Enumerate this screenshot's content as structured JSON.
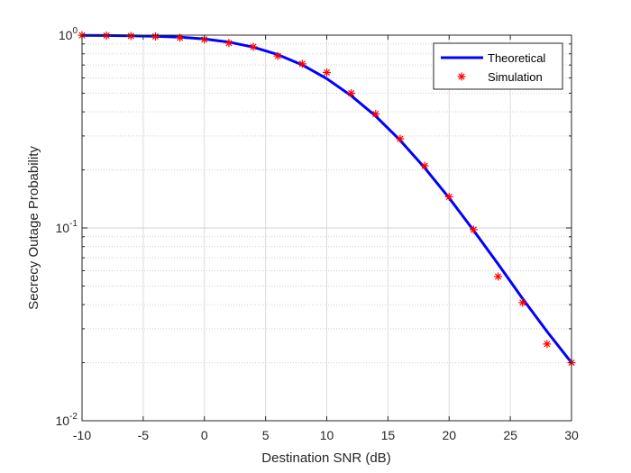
{
  "chart_data": {
    "type": "line",
    "xlabel": "Destination SNR (dB)",
    "ylabel": "Secrecy Outage Probability",
    "xlim": [
      -10,
      30
    ],
    "ylim": [
      0.01,
      1
    ],
    "yscale": "log",
    "grid": true,
    "minor_grid": true,
    "legend_position": "top-right",
    "x_ticks": [
      -10,
      -5,
      0,
      5,
      10,
      15,
      20,
      25,
      30
    ],
    "x_tick_labels": [
      "-10",
      "-5",
      "0",
      "5",
      "10",
      "15",
      "20",
      "25",
      "30"
    ],
    "y_ticks": [
      {
        "value": 1,
        "base": "10",
        "exp": "0"
      },
      {
        "value": 0.1,
        "base": "10",
        "exp": "-1"
      },
      {
        "value": 0.01,
        "base": "10",
        "exp": "-2"
      }
    ],
    "series": [
      {
        "name": "Theoretical",
        "style": "line",
        "color": "#0000ff",
        "x": [
          -10,
          -8,
          -6,
          -4,
          -2,
          0,
          2,
          4,
          6,
          8,
          10,
          12,
          14,
          16,
          18,
          20,
          22,
          24,
          26,
          28,
          30
        ],
        "y": [
          0.998,
          0.996,
          0.993,
          0.987,
          0.976,
          0.955,
          0.92,
          0.867,
          0.793,
          0.7,
          0.595,
          0.485,
          0.38,
          0.285,
          0.205,
          0.143,
          0.097,
          0.065,
          0.043,
          0.029,
          0.02
        ]
      },
      {
        "name": "Simulation",
        "style": "marker",
        "marker": "asterisk",
        "color": "#ff0000",
        "x": [
          -10,
          -8,
          -6,
          -4,
          -2,
          0,
          2,
          4,
          6,
          8,
          10,
          12,
          14,
          16,
          18,
          20,
          22,
          24,
          26,
          28,
          30
        ],
        "y": [
          0.998,
          0.995,
          0.99,
          0.985,
          0.97,
          0.95,
          0.91,
          0.87,
          0.78,
          0.71,
          0.64,
          0.5,
          0.39,
          0.29,
          0.21,
          0.145,
          0.098,
          0.056,
          0.041,
          0.025,
          0.02
        ]
      }
    ]
  }
}
